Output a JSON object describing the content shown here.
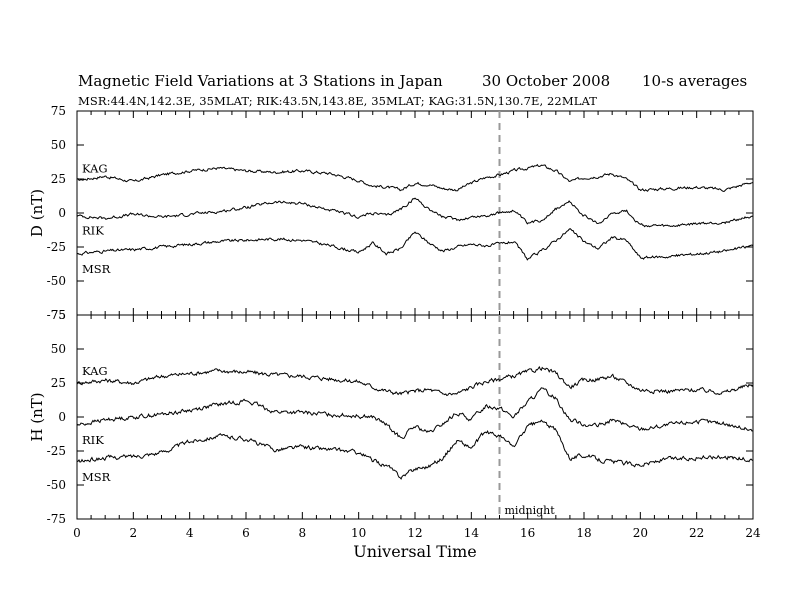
{
  "title": {
    "main": "Magnetic Field Variations at 3 Stations in Japan",
    "date": "30 October 2008",
    "averaging": "10-s averages"
  },
  "subtitle": "MSR:44.4N,142.3E, 35MLAT;  RIK:43.5N,143.8E, 35MLAT;  KAG:31.5N,130.7E, 22MLAT",
  "chart_data": [
    {
      "type": "line",
      "ylabel": "D (nT)",
      "ylim": [
        -75,
        75
      ],
      "yticks": [
        75,
        50,
        25,
        0,
        -25,
        -50,
        -75
      ],
      "xlim": [
        0,
        24
      ],
      "grid": false,
      "series": [
        {
          "name": "KAG",
          "x": [
            0,
            1,
            2,
            3,
            4,
            5,
            6,
            7,
            8,
            9,
            10,
            10.5,
            11,
            11.5,
            12,
            12.5,
            13,
            13.5,
            14,
            14.5,
            15,
            15.5,
            16,
            16.5,
            17,
            17.5,
            18,
            18.5,
            19,
            19.5,
            20,
            21,
            22,
            23,
            24
          ],
          "values": [
            24,
            27,
            23,
            28,
            31,
            33,
            31,
            30,
            31,
            29,
            24,
            20,
            19,
            17,
            22,
            21,
            18,
            17,
            22,
            26,
            28,
            31,
            33,
            35,
            31,
            23,
            26,
            27,
            29,
            25,
            17,
            18,
            19,
            17,
            23
          ]
        },
        {
          "name": "RIK",
          "x": [
            0,
            1,
            2,
            3,
            4,
            5,
            6,
            7,
            8,
            9,
            10,
            10.5,
            11,
            11.5,
            12,
            12.5,
            13,
            13.5,
            14,
            14.5,
            15,
            15.5,
            16,
            16.5,
            17,
            17.5,
            18,
            18.5,
            19,
            19.5,
            20,
            21,
            22,
            23,
            24
          ],
          "values": [
            -2,
            -4,
            -1,
            -3,
            -1,
            1,
            4,
            8,
            7,
            2,
            -3,
            0,
            -2,
            3,
            11,
            3,
            -3,
            -5,
            -3,
            -2,
            0,
            2,
            -8,
            -5,
            3,
            8,
            -2,
            -8,
            0,
            2,
            -9,
            -10,
            -8,
            -7,
            -2
          ]
        },
        {
          "name": "MSR",
          "x": [
            0,
            1,
            2,
            3,
            4,
            5,
            6,
            7,
            8,
            9,
            10,
            10.5,
            11,
            11.5,
            12,
            12.5,
            13,
            13.5,
            14,
            14.5,
            15,
            15.5,
            16,
            16.5,
            17,
            17.5,
            18,
            18.5,
            19,
            19.5,
            20,
            21,
            22,
            23,
            24
          ],
          "values": [
            -30,
            -28,
            -27,
            -25,
            -23,
            -21,
            -20,
            -19,
            -20,
            -24,
            -29,
            -22,
            -30,
            -26,
            -14,
            -22,
            -28,
            -25,
            -23,
            -24,
            -23,
            -21,
            -34,
            -28,
            -20,
            -12,
            -21,
            -26,
            -18,
            -20,
            -33,
            -32,
            -30,
            -28,
            -24
          ]
        }
      ]
    },
    {
      "type": "line",
      "ylabel": "H (nT)",
      "xlabel": "Universal Time",
      "ylim": [
        -75,
        75
      ],
      "yticks": [
        75,
        50,
        25,
        0,
        -25,
        -50,
        -75
      ],
      "xlim": [
        0,
        24
      ],
      "xticks": [
        0,
        2,
        4,
        6,
        8,
        10,
        12,
        14,
        16,
        18,
        20,
        22,
        24
      ],
      "grid": false,
      "annotation": {
        "x": 15,
        "text": "midnight"
      },
      "series": [
        {
          "name": "KAG",
          "x": [
            0,
            1,
            2,
            3,
            4,
            5,
            6,
            7,
            8,
            9,
            10,
            10.5,
            11,
            11.5,
            12,
            12.5,
            13,
            13.5,
            14,
            14.5,
            15,
            15.5,
            16,
            16.5,
            17,
            17.5,
            18,
            18.5,
            19,
            19.5,
            20,
            21,
            22,
            23,
            24
          ],
          "values": [
            25,
            27,
            25,
            30,
            32,
            34,
            33,
            31,
            30,
            28,
            26,
            22,
            19,
            17,
            19,
            20,
            17,
            17,
            22,
            26,
            28,
            30,
            33,
            36,
            32,
            22,
            27,
            28,
            30,
            25,
            20,
            19,
            20,
            18,
            24
          ]
        },
        {
          "name": "RIK",
          "x": [
            0,
            1,
            2,
            3,
            4,
            5,
            6,
            7,
            8,
            9,
            10,
            10.5,
            11,
            11.5,
            12,
            12.5,
            13,
            13.5,
            14,
            14.5,
            15,
            15.5,
            16,
            16.5,
            17,
            17.5,
            18,
            18.5,
            19,
            19.5,
            20,
            21,
            22,
            23,
            24
          ],
          "values": [
            -6,
            -2,
            0,
            2,
            5,
            9,
            12,
            4,
            3,
            2,
            1,
            0,
            -6,
            -16,
            -7,
            -12,
            -5,
            3,
            -2,
            8,
            7,
            0,
            11,
            20,
            14,
            -2,
            -5,
            -7,
            -2,
            -6,
            -9,
            -6,
            -3,
            -5,
            -10
          ]
        },
        {
          "name": "MSR",
          "x": [
            0,
            1,
            2,
            3,
            4,
            5,
            6,
            7,
            8,
            9,
            10,
            10.5,
            11,
            11.5,
            12,
            12.5,
            13,
            13.5,
            14,
            14.5,
            15,
            15.5,
            16,
            16.5,
            17,
            17.5,
            18,
            18.5,
            19,
            19.5,
            20,
            21,
            22,
            23,
            24
          ],
          "values": [
            -33,
            -30,
            -29,
            -26,
            -18,
            -14,
            -16,
            -24,
            -22,
            -24,
            -26,
            -32,
            -36,
            -44,
            -38,
            -36,
            -30,
            -17,
            -23,
            -11,
            -14,
            -22,
            -7,
            -3,
            -10,
            -30,
            -28,
            -31,
            -33,
            -34,
            -35,
            -31,
            -30,
            -29,
            -32
          ]
        }
      ]
    }
  ]
}
